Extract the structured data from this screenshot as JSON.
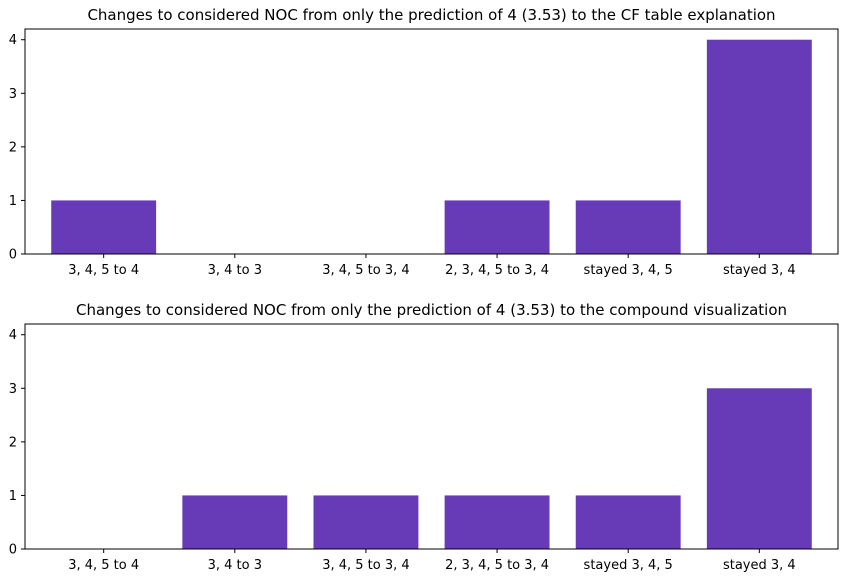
{
  "chart_data": [
    {
      "type": "bar",
      "title": "Changes to considered NOC from only the prediction of 4 (3.53) to the CF table explanation",
      "xlabel": "",
      "ylabel": "",
      "categories": [
        "3, 4, 5 to 4",
        "3, 4 to 3",
        "3, 4, 5 to 3, 4",
        "2, 3, 4, 5 to 3, 4",
        "stayed 3, 4, 5",
        "stayed 3, 4"
      ],
      "values": [
        1,
        0,
        0,
        1,
        1,
        4
      ],
      "ylim": [
        0,
        4.2
      ],
      "yticks": [
        0,
        1,
        2,
        3,
        4
      ],
      "color": "#673ab7",
      "grid": false
    },
    {
      "type": "bar",
      "title": "Changes to considered NOC from only the prediction of 4 (3.53) to the compound visualization",
      "xlabel": "",
      "ylabel": "",
      "categories": [
        "3, 4, 5 to 4",
        "3, 4 to 3",
        "3, 4, 5 to 3, 4",
        "2, 3, 4, 5 to 3, 4",
        "stayed 3, 4, 5",
        "stayed 3, 4"
      ],
      "values": [
        0,
        1,
        1,
        1,
        1,
        3
      ],
      "ylim": [
        0,
        4.2
      ],
      "yticks": [
        0,
        1,
        2,
        3,
        4
      ],
      "color": "#673ab7",
      "grid": false
    }
  ]
}
